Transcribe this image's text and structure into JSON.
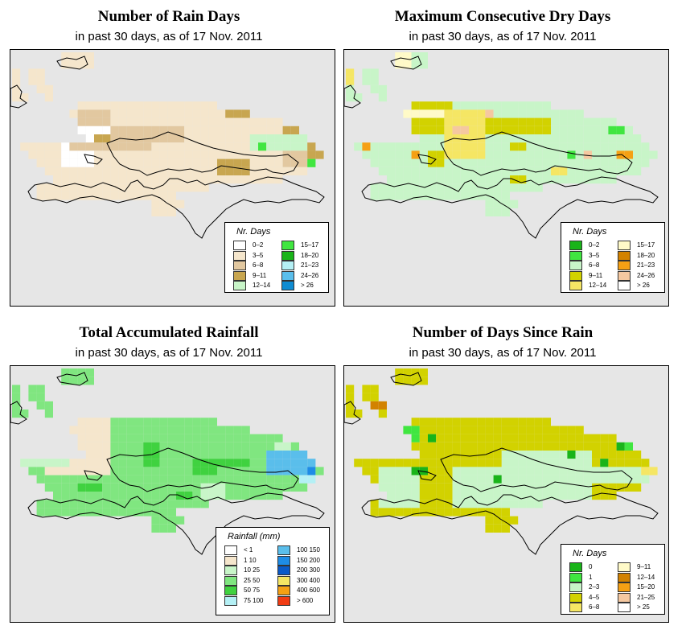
{
  "panels": [
    {
      "title": "Number of Rain Days",
      "subtitle": "in past 30 days, as of  17 Nov. 2011",
      "legend": {
        "title": "Nr. Days",
        "cols": [
          [
            {
              "label": "0–2",
              "color": "#ffffff"
            },
            {
              "label": "3–5",
              "color": "#f5e6cc"
            },
            {
              "label": "6–8",
              "color": "#e2c8a0"
            },
            {
              "label": "9–11",
              "color": "#c8a650"
            },
            {
              "label": "12–14",
              "color": "#c8f5c8"
            }
          ],
          [
            {
              "label": "15–17",
              "color": "#40e640"
            },
            {
              "label": "18–20",
              "color": "#19b419"
            },
            {
              "label": "21–23",
              "color": "#b4f0f5"
            },
            {
              "label": "24–26",
              "color": "#5abeeb"
            },
            {
              "label": "> 26",
              "color": "#0f8cd2"
            }
          ]
        ]
      },
      "palette": {
        "a": "#ffffff",
        "b": "#f5e6cc",
        "c": "#e2c8a0",
        "d": "#c8a650",
        "e": "#c8f5c8",
        "f": "#40e640"
      },
      "fill": "b",
      "patches": [
        [
          "a",
          3,
          5,
          1,
          0
        ],
        [
          "a",
          6,
          8,
          2,
          1
        ],
        [
          "a",
          9,
          14,
          6,
          10
        ],
        [
          "a",
          9,
          10,
          10,
          12
        ],
        [
          "a",
          13,
          14,
          0,
          1
        ],
        [
          "d",
          10,
          11,
          10,
          12
        ],
        [
          "c",
          8,
          9,
          8,
          12
        ],
        [
          "c",
          7,
          8,
          8,
          12
        ],
        [
          "c",
          11,
          12,
          7,
          17
        ],
        [
          "c",
          9,
          11,
          12,
          21
        ],
        [
          "d",
          13,
          15,
          25,
          29
        ],
        [
          "d",
          6,
          8,
          26,
          29
        ],
        [
          "d",
          11,
          14,
          36,
          40
        ],
        [
          "d",
          9,
          10,
          33,
          35
        ],
        [
          "c",
          6,
          8,
          31,
          33
        ],
        [
          "c",
          12,
          14,
          33,
          36
        ],
        [
          "e",
          10,
          12,
          29,
          36
        ],
        [
          "f",
          11,
          12,
          30,
          31
        ],
        [
          "f",
          13,
          14,
          36,
          37
        ]
      ]
    },
    {
      "title": "Maximum Consecutive Dry Days",
      "subtitle": "in past 30 days, as of  17 Nov. 2011",
      "legend": {
        "title": "Nr. Days",
        "cols": [
          [
            {
              "label": "0–2",
              "color": "#19b419"
            },
            {
              "label": "3–5",
              "color": "#40e640"
            },
            {
              "label": "6–8",
              "color": "#c8f5c8"
            },
            {
              "label": "9–11",
              "color": "#d2d200"
            },
            {
              "label": "12–14",
              "color": "#f5e664"
            }
          ],
          [
            {
              "label": "15–17",
              "color": "#fffac8"
            },
            {
              "label": "18–20",
              "color": "#d28200"
            },
            {
              "label": "21–23",
              "color": "#f5a014"
            },
            {
              "label": "24–26",
              "color": "#f5c8a0"
            },
            {
              "label": "> 26",
              "color": "#ffffff"
            }
          ]
        ]
      },
      "palette": {
        "a": "#d2d200",
        "b": "#c8f5c8",
        "c": "#f5e664",
        "d": "#fffac8",
        "e": "#f5c8a0",
        "f": "#f5a014",
        "g": "#40e640"
      },
      "fill": "b",
      "patches": [
        [
          "a",
          6,
          10,
          6,
          13
        ],
        [
          "d",
          7,
          8,
          5,
          13
        ],
        [
          "c",
          7,
          13,
          12,
          17
        ],
        [
          "a",
          8,
          10,
          17,
          25
        ],
        [
          "e",
          9,
          10,
          13,
          15
        ],
        [
          "e",
          7,
          8,
          17,
          18
        ],
        [
          "a",
          12,
          14,
          10,
          12
        ],
        [
          "f",
          11,
          12,
          2,
          3
        ],
        [
          "f",
          12,
          13,
          8,
          9
        ],
        [
          "d",
          0,
          2,
          5,
          8
        ],
        [
          "c",
          2,
          4,
          0,
          2
        ],
        [
          "g",
          9,
          10,
          32,
          34
        ],
        [
          "g",
          12,
          13,
          27,
          28
        ],
        [
          "a",
          11,
          12,
          20,
          22
        ],
        [
          "c",
          14,
          15,
          25,
          27
        ],
        [
          "a",
          15,
          16,
          20,
          22
        ],
        [
          "e",
          12,
          13,
          29,
          30
        ],
        [
          "f",
          12,
          13,
          33,
          35
        ],
        [
          "a",
          7,
          9,
          35,
          37
        ],
        [
          "c",
          13,
          14,
          37,
          39
        ]
      ]
    },
    {
      "title": "Total Accumulated Rainfall",
      "subtitle": "in past 30 days, as of  17 Nov. 2011",
      "legend": {
        "title": "Rainfall (mm)",
        "cols": [
          [
            {
              "label": "< 1",
              "color": "#ffffff"
            },
            {
              "label": "1    10",
              "color": "#f5e6cc"
            },
            {
              "label": "10    25",
              "color": "#c8f5c8"
            },
            {
              "label": "25    50",
              "color": "#80e680"
            },
            {
              "label": "50    75",
              "color": "#40d240"
            },
            {
              "label": "75    100",
              "color": "#b4f0f5"
            }
          ],
          [
            {
              "label": "100    150",
              "color": "#5abeeb"
            },
            {
              "label": "150    200",
              "color": "#1e8ce6"
            },
            {
              "label": "200    300",
              "color": "#0a5ac8"
            },
            {
              "label": "300    400",
              "color": "#f5e664"
            },
            {
              "label": "400    600",
              "color": "#f5a014"
            },
            {
              "label": "> 600",
              "color": "#f03c14"
            }
          ]
        ]
      },
      "palette": {
        "a": "#f5e6cc",
        "b": "#c8f5c8",
        "c": "#80e680",
        "d": "#40d240",
        "e": "#b4f0f5",
        "f": "#5abeeb",
        "g": "#1e8ce6"
      },
      "fill": "c",
      "patches": [
        [
          "a",
          6,
          13,
          4,
          12
        ],
        [
          "b",
          11,
          12,
          1,
          7
        ],
        [
          "d",
          14,
          15,
          8,
          11
        ],
        [
          "d",
          9,
          12,
          16,
          18
        ],
        [
          "d",
          11,
          13,
          22,
          25
        ],
        [
          "d",
          11,
          12,
          25,
          29
        ],
        [
          "d",
          15,
          16,
          20,
          22
        ],
        [
          "b",
          14,
          16,
          23,
          26
        ],
        [
          "f",
          10,
          13,
          31,
          37
        ],
        [
          "g",
          12,
          13,
          36,
          37
        ],
        [
          "e",
          13,
          14,
          35,
          37
        ],
        [
          "b",
          9,
          10,
          32,
          34
        ]
      ]
    },
    {
      "title": "Number of Days Since Rain",
      "subtitle": "in past 30 days, as of  17 Nov. 2011",
      "legend": {
        "title": "Nr. Days",
        "cols": [
          [
            {
              "label": "0",
              "color": "#19b419"
            },
            {
              "label": "1",
              "color": "#40e640"
            },
            {
              "label": "2–3",
              "color": "#c8f5c8"
            },
            {
              "label": "4–5",
              "color": "#d2d200"
            },
            {
              "label": "6–8",
              "color": "#f5e664"
            }
          ],
          [
            {
              "label": "9–11",
              "color": "#fffac8"
            },
            {
              "label": "12–14",
              "color": "#d28200"
            },
            {
              "label": "15–20",
              "color": "#f5a014"
            },
            {
              "label": "21–25",
              "color": "#f5c8a0"
            },
            {
              "label": "> 25",
              "color": "#ffffff"
            }
          ]
        ]
      },
      "palette": {
        "a": "#d2d200",
        "b": "#c8f5c8",
        "c": "#19b419",
        "d": "#40e640",
        "e": "#f5e664",
        "f": "#d28200"
      },
      "fill": "a",
      "patches": [
        [
          "b",
          12,
          17,
          4,
          9
        ],
        [
          "b",
          12,
          17,
          13,
          30
        ],
        [
          "b",
          10,
          12,
          19,
          30
        ],
        [
          "b",
          12,
          14,
          30,
          37
        ],
        [
          "c",
          7,
          8,
          7,
          9
        ],
        [
          "c",
          8,
          9,
          10,
          11
        ],
        [
          "c",
          12,
          13,
          8,
          10
        ],
        [
          "c",
          13,
          14,
          18,
          19
        ],
        [
          "c",
          10,
          11,
          27,
          28
        ],
        [
          "c",
          11,
          12,
          31,
          32
        ],
        [
          "c",
          9,
          10,
          33,
          35
        ],
        [
          "d",
          7,
          9,
          7,
          9
        ],
        [
          "d",
          9,
          10,
          34,
          35
        ],
        [
          "e",
          12,
          13,
          36,
          38
        ],
        [
          "e",
          14,
          15,
          37,
          38
        ],
        [
          "f",
          4,
          5,
          3,
          5
        ],
        [
          "f",
          0,
          1,
          5,
          6
        ]
      ]
    }
  ]
}
